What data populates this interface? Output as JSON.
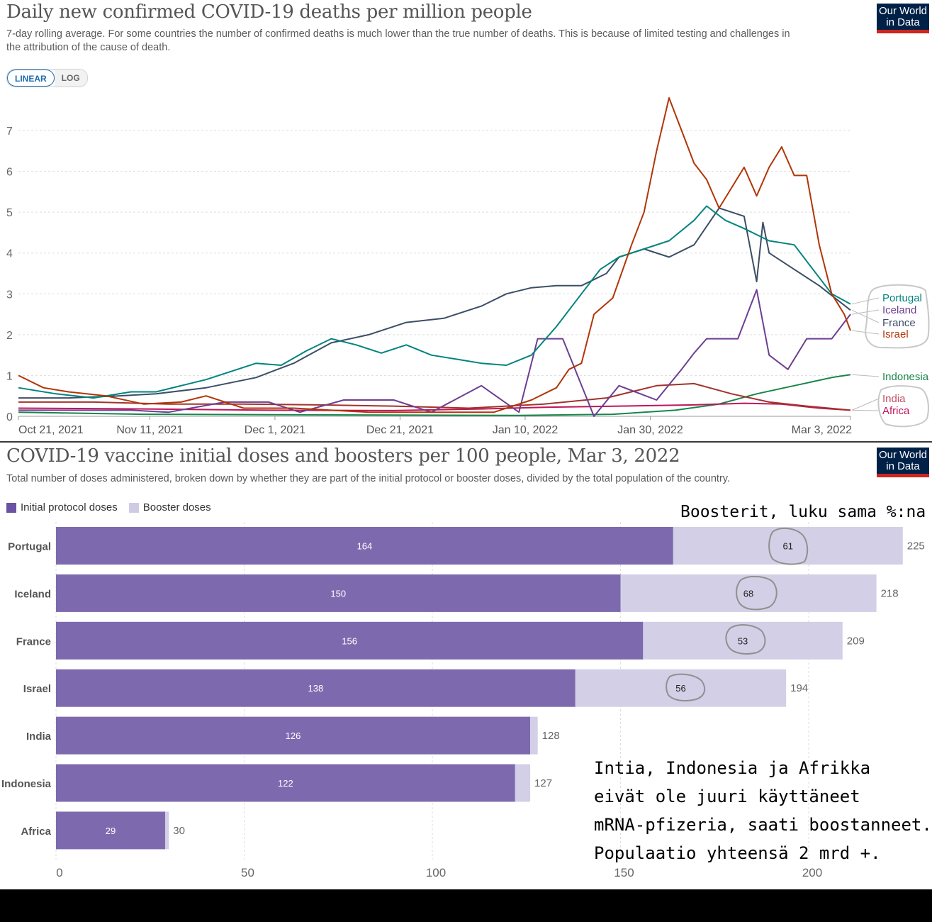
{
  "top_chart": {
    "title": "Daily new confirmed COVID-19 deaths per million people",
    "subtitle": "7-day rolling average. For some countries the number of confirmed deaths is much lower than the true number of deaths. This is because of limited testing and challenges in the attribution of the cause of death.",
    "logo_line1": "Our World",
    "logo_line2": "in Data",
    "toggle": {
      "linear": "LINEAR",
      "log": "LOG"
    }
  },
  "bottom_chart": {
    "title": "COVID-19 vaccine initial doses and boosters per 100 people, Mar 3, 2022",
    "subtitle": "Total number of doses administered, broken down by whether they are part of the initial protocol or booster doses, divided by the total population of the country.",
    "logo_line1": "Our World",
    "logo_line2": "in Data",
    "legend": {
      "initial": "Initial protocol doses",
      "booster": "Booster doses"
    }
  },
  "annotations": {
    "booster_note": "Boosterit, luku sama %:na",
    "lines": [
      "Intia, Indonesia ja Afrikka",
      "eivät ole juuri käyttäneet",
      "mRNA-pfizeria, saati boostanneet.",
      "Populaatio yhteensä 2 mrd +."
    ]
  },
  "colors": {
    "Portugal": "#00847e",
    "Iceland": "#6d3e91",
    "France": "#286bbb",
    "France_line": "#3c4e66",
    "Israel": "#c15065",
    "Israel_line": "#b13507",
    "Indonesia": "#18864b",
    "India": "#a2332a",
    "Africa": "#c0155b",
    "initial": "#7d6aae",
    "booster": "#d3cfe6"
  },
  "chart_data": [
    {
      "type": "line",
      "title": "Daily new confirmed COVID-19 deaths per million people",
      "ylim": [
        0,
        7.8
      ],
      "yticks": [
        0,
        1,
        2,
        3,
        4,
        5,
        6,
        7
      ],
      "xticks": [
        {
          "label": "Oct 21, 2021",
          "day": 0
        },
        {
          "label": "Nov 11, 2021",
          "day": 21
        },
        {
          "label": "Dec 1, 2021",
          "day": 41
        },
        {
          "label": "Dec 21, 2021",
          "day": 61
        },
        {
          "label": "Jan 10, 2022",
          "day": 81
        },
        {
          "label": "Jan 30, 2022",
          "day": 101
        },
        {
          "label": "Mar 3, 2022",
          "day": 133
        }
      ],
      "series": [
        {
          "name": "Portugal",
          "points": [
            [
              0,
              0.7
            ],
            [
              6,
              0.55
            ],
            [
              12,
              0.45
            ],
            [
              18,
              0.6
            ],
            [
              22,
              0.6
            ],
            [
              26,
              0.75
            ],
            [
              30,
              0.9
            ],
            [
              34,
              1.1
            ],
            [
              38,
              1.3
            ],
            [
              42,
              1.25
            ],
            [
              46,
              1.6
            ],
            [
              50,
              1.9
            ],
            [
              54,
              1.75
            ],
            [
              58,
              1.55
            ],
            [
              62,
              1.75
            ],
            [
              66,
              1.5
            ],
            [
              70,
              1.4
            ],
            [
              74,
              1.3
            ],
            [
              78,
              1.25
            ],
            [
              82,
              1.5
            ],
            [
              86,
              2.2
            ],
            [
              90,
              3.0
            ],
            [
              93,
              3.6
            ],
            [
              96,
              3.9
            ],
            [
              100,
              4.1
            ],
            [
              104,
              4.3
            ],
            [
              108,
              4.8
            ],
            [
              110,
              5.15
            ],
            [
              113,
              4.8
            ],
            [
              116,
              4.6
            ],
            [
              120,
              4.3
            ],
            [
              124,
              4.2
            ],
            [
              127,
              3.6
            ],
            [
              130,
              3.0
            ],
            [
              133,
              2.75
            ]
          ]
        },
        {
          "name": "Iceland",
          "points": [
            [
              0,
              0.15
            ],
            [
              10,
              0.15
            ],
            [
              18,
              0.15
            ],
            [
              24,
              0.1
            ],
            [
              33,
              0.35
            ],
            [
              40,
              0.35
            ],
            [
              45,
              0.1
            ],
            [
              52,
              0.4
            ],
            [
              60,
              0.4
            ],
            [
              66,
              0.1
            ],
            [
              74,
              0.75
            ],
            [
              80,
              0.1
            ],
            [
              83,
              1.9
            ],
            [
              87,
              1.9
            ],
            [
              92,
              0.0
            ],
            [
              96,
              0.75
            ],
            [
              102,
              0.4
            ],
            [
              106,
              1.15
            ],
            [
              108,
              1.55
            ],
            [
              110,
              1.9
            ],
            [
              115,
              1.9
            ],
            [
              118,
              3.1
            ],
            [
              120,
              1.5
            ],
            [
              123,
              1.15
            ],
            [
              126,
              1.9
            ],
            [
              130,
              1.9
            ],
            [
              133,
              2.5
            ]
          ]
        },
        {
          "name": "France",
          "points": [
            [
              0,
              0.45
            ],
            [
              8,
              0.45
            ],
            [
              16,
              0.5
            ],
            [
              22,
              0.55
            ],
            [
              30,
              0.7
            ],
            [
              38,
              0.95
            ],
            [
              44,
              1.3
            ],
            [
              50,
              1.8
            ],
            [
              56,
              2.0
            ],
            [
              62,
              2.3
            ],
            [
              68,
              2.4
            ],
            [
              74,
              2.7
            ],
            [
              78,
              3.0
            ],
            [
              82,
              3.15
            ],
            [
              86,
              3.2
            ],
            [
              90,
              3.2
            ],
            [
              94,
              3.5
            ],
            [
              96,
              3.9
            ],
            [
              100,
              4.1
            ],
            [
              104,
              3.9
            ],
            [
              108,
              4.2
            ],
            [
              112,
              5.1
            ],
            [
              116,
              4.9
            ],
            [
              118,
              3.3
            ],
            [
              119,
              4.75
            ],
            [
              120,
              4.0
            ],
            [
              124,
              3.6
            ],
            [
              128,
              3.2
            ],
            [
              133,
              2.6
            ]
          ]
        },
        {
          "name": "Israel",
          "points": [
            [
              0,
              1.0
            ],
            [
              4,
              0.7
            ],
            [
              8,
              0.6
            ],
            [
              14,
              0.5
            ],
            [
              20,
              0.3
            ],
            [
              26,
              0.35
            ],
            [
              30,
              0.5
            ],
            [
              36,
              0.2
            ],
            [
              44,
              0.2
            ],
            [
              50,
              0.15
            ],
            [
              56,
              0.1
            ],
            [
              62,
              0.1
            ],
            [
              70,
              0.1
            ],
            [
              76,
              0.1
            ],
            [
              82,
              0.4
            ],
            [
              86,
              0.7
            ],
            [
              88,
              1.15
            ],
            [
              90,
              1.3
            ],
            [
              92,
              2.5
            ],
            [
              95,
              2.9
            ],
            [
              98,
              4.2
            ],
            [
              100,
              5.0
            ],
            [
              102,
              6.5
            ],
            [
              104,
              7.8
            ],
            [
              106,
              7.0
            ],
            [
              108,
              6.2
            ],
            [
              110,
              5.8
            ],
            [
              112,
              5.1
            ],
            [
              114,
              5.6
            ],
            [
              116,
              6.1
            ],
            [
              118,
              5.4
            ],
            [
              120,
              6.1
            ],
            [
              122,
              6.6
            ],
            [
              124,
              5.9
            ],
            [
              126,
              5.9
            ],
            [
              128,
              4.2
            ],
            [
              130,
              3.0
            ],
            [
              132,
              2.5
            ],
            [
              133,
              2.1
            ]
          ]
        },
        {
          "name": "Indonesia",
          "points": [
            [
              0,
              0.1
            ],
            [
              20,
              0.05
            ],
            [
              40,
              0.04
            ],
            [
              60,
              0.03
            ],
            [
              80,
              0.02
            ],
            [
              95,
              0.05
            ],
            [
              105,
              0.15
            ],
            [
              112,
              0.3
            ],
            [
              118,
              0.55
            ],
            [
              124,
              0.75
            ],
            [
              130,
              0.95
            ],
            [
              133,
              1.02
            ]
          ]
        },
        {
          "name": "India",
          "points": [
            [
              0,
              0.35
            ],
            [
              12,
              0.35
            ],
            [
              24,
              0.3
            ],
            [
              36,
              0.3
            ],
            [
              48,
              0.28
            ],
            [
              60,
              0.25
            ],
            [
              72,
              0.2
            ],
            [
              84,
              0.3
            ],
            [
              94,
              0.45
            ],
            [
              102,
              0.75
            ],
            [
              108,
              0.8
            ],
            [
              114,
              0.55
            ],
            [
              120,
              0.35
            ],
            [
              126,
              0.25
            ],
            [
              133,
              0.15
            ]
          ]
        },
        {
          "name": "Africa",
          "points": [
            [
              0,
              0.2
            ],
            [
              20,
              0.18
            ],
            [
              40,
              0.15
            ],
            [
              60,
              0.14
            ],
            [
              74,
              0.18
            ],
            [
              84,
              0.22
            ],
            [
              96,
              0.25
            ],
            [
              108,
              0.28
            ],
            [
              116,
              0.32
            ],
            [
              122,
              0.3
            ],
            [
              128,
              0.2
            ],
            [
              133,
              0.15
            ]
          ]
        }
      ]
    },
    {
      "type": "bar",
      "title": "COVID-19 vaccine initial doses and boosters per 100 people, Mar 3, 2022",
      "xlim": [
        0,
        230
      ],
      "xticks": [
        0,
        50,
        100,
        150,
        200
      ],
      "categories": [
        "Portugal",
        "Iceland",
        "France",
        "Israel",
        "India",
        "Indonesia",
        "Africa"
      ],
      "series": [
        {
          "name": "Initial protocol doses",
          "values": [
            164,
            150,
            156,
            138,
            126,
            122,
            29
          ]
        },
        {
          "name": "Booster doses",
          "values": [
            61,
            68,
            53,
            56,
            2,
            4,
            1
          ]
        }
      ],
      "totals": [
        225,
        218,
        209,
        194,
        128,
        127,
        30
      ]
    }
  ]
}
